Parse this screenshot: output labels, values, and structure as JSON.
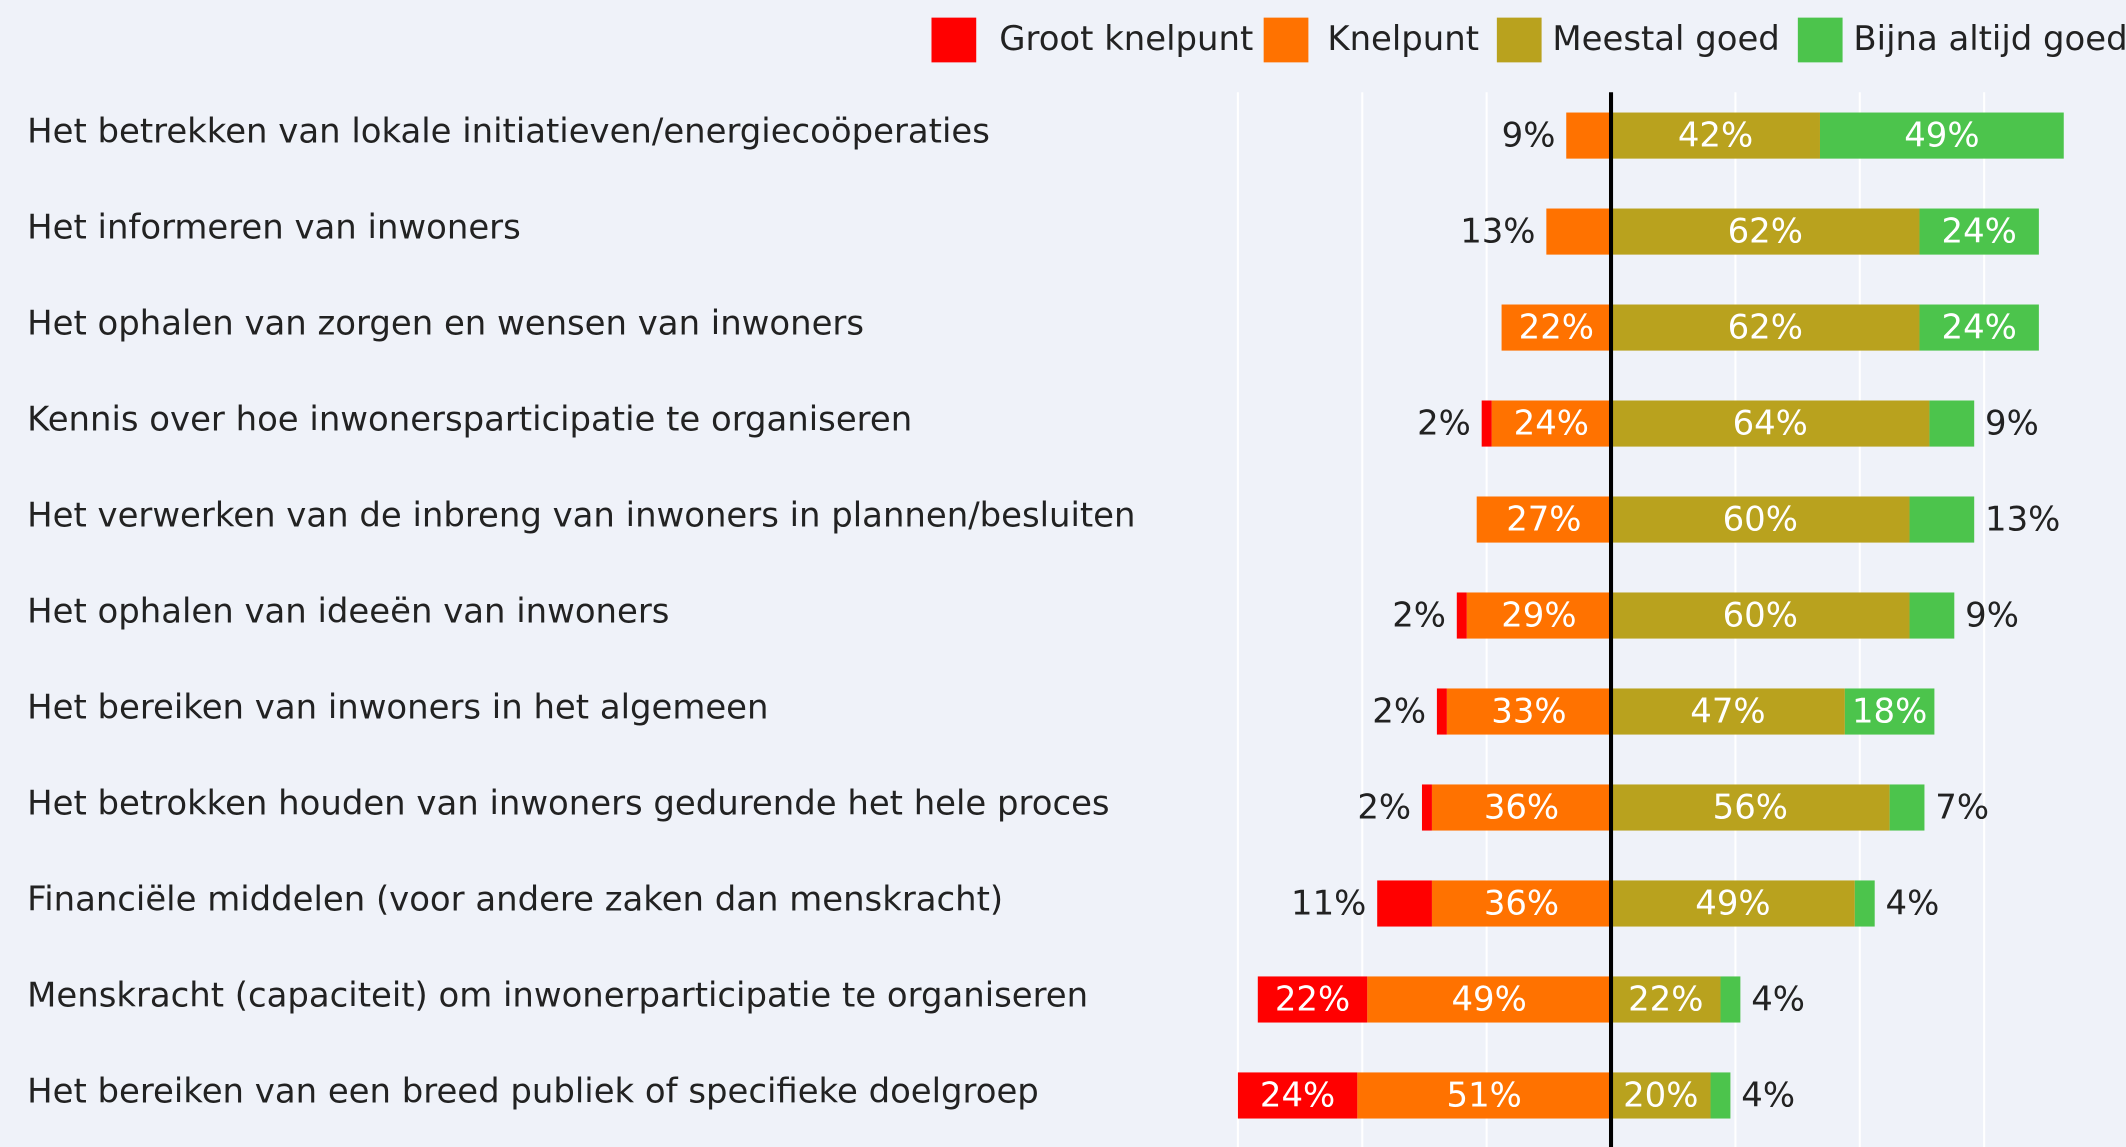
{
  "chart_data": {
    "type": "diverging-bar",
    "categories": [
      "Het betrekken van lokale initiatieven/energiecoöperaties",
      "Het informeren van inwoners",
      "Het ophalen van zorgen en wensen van inwoners",
      "Kennis over hoe inwonersparticipatie te organiseren",
      "Het verwerken van de inbreng van inwoners in plannen/besluiten",
      "Het ophalen van ideeën van inwoners",
      "Het bereiken van inwoners in het algemeen",
      "Het betrokken houden van inwoners gedurende het hele proces",
      "Financiële middelen (voor andere zaken dan menskracht)",
      "Menskracht (capaciteit) om inwonerparticipatie te organiseren",
      "Het bereiken van een breed publiek of specifieke doelgroep"
    ],
    "series": [
      {
        "name": "Groot knelpunt",
        "color": "#ff0000",
        "side": "left",
        "values": [
          null,
          null,
          null,
          2,
          null,
          2,
          2,
          2,
          11,
          22,
          24
        ],
        "value_labels": [
          null,
          null,
          null,
          "2%",
          null,
          "2%",
          "2%",
          "2%",
          "11%",
          "22%",
          "24%"
        ]
      },
      {
        "name": "Knelpunt",
        "color": "#ff7200",
        "side": "left",
        "values": [
          9,
          13,
          22,
          24,
          27,
          29,
          33,
          36,
          36,
          49,
          51
        ],
        "value_labels": [
          "9%",
          "13%",
          "22%",
          "24%",
          "27%",
          "29%",
          "33%",
          "36%",
          "36%",
          "49%",
          "51%"
        ]
      },
      {
        "name": "Meestal goed",
        "color": "#b9a21e",
        "side": "right",
        "values": [
          42,
          62,
          62,
          64,
          60,
          60,
          47,
          56,
          49,
          22,
          20
        ],
        "value_labels": [
          "42%",
          "62%",
          "62%",
          "64%",
          "60%",
          "60%",
          "47%",
          "56%",
          "49%",
          "22%",
          "20%"
        ]
      },
      {
        "name": "Bijna altijd goed",
        "color": "#4cc44c",
        "side": "right",
        "values": [
          49,
          24,
          24,
          9,
          13,
          9,
          18,
          7,
          4,
          4,
          4
        ],
        "value_labels": [
          "49%",
          "24%",
          "24%",
          "9%",
          "13%",
          "9%",
          "18%",
          "7%",
          "4%",
          "4%",
          "4%"
        ]
      }
    ],
    "xlim": [
      -75,
      103.5
    ],
    "xticks": [
      -75,
      -50,
      -25,
      0,
      25,
      50,
      75
    ],
    "grid": true
  }
}
